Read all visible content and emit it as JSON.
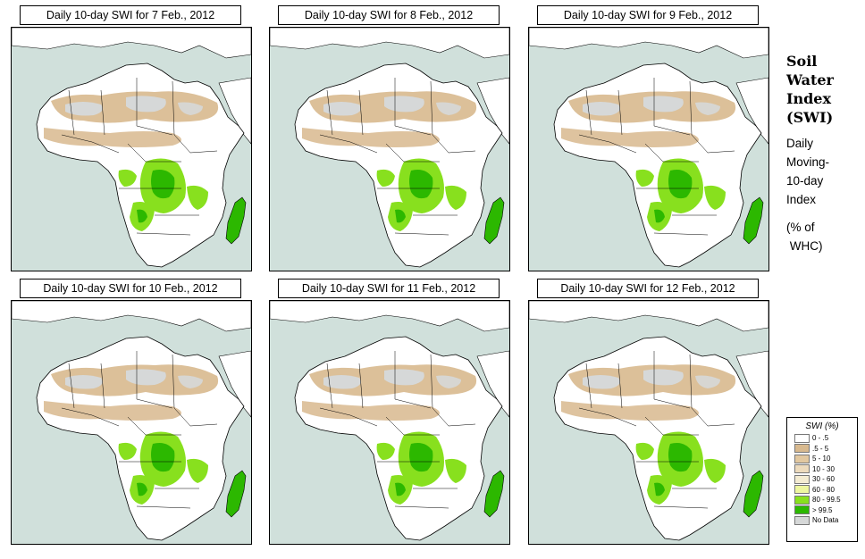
{
  "panels": [
    {
      "title": "Daily 10-day SWI for  7 Feb., 2012"
    },
    {
      "title": "Daily 10-day SWI for  8 Feb., 2012"
    },
    {
      "title": "Daily 10-day SWI for  9 Feb., 2012"
    },
    {
      "title": "Daily 10-day SWI for 10 Feb., 2012"
    },
    {
      "title": "Daily 10-day SWI for 11 Feb., 2012"
    },
    {
      "title": "Daily 10-day SWI for 12 Feb., 2012"
    }
  ],
  "side": {
    "title_lines": [
      "Soil",
      "Water",
      "Index",
      "(SWI)"
    ],
    "desc_lines": [
      "Daily",
      "Moving-",
      "10-day",
      "Index"
    ],
    "unit_lines": [
      "(% of",
      " WHC)"
    ]
  },
  "legend": {
    "title": "SWI (%)",
    "items": [
      {
        "label": "0 - .5",
        "color": "#ffffff"
      },
      {
        "label": ".5 - 5",
        "color": "#d8b98e"
      },
      {
        "label": "5 - 10",
        "color": "#e2c8a0"
      },
      {
        "label": "10 - 30",
        "color": "#eddbbd"
      },
      {
        "label": "30 - 60",
        "color": "#f4ecd2"
      },
      {
        "label": "60 - 80",
        "color": "#eef7a0"
      },
      {
        "label": "80 - 99.5",
        "color": "#88e01e"
      },
      {
        "label": "> 99.5",
        "color": "#2cb800"
      },
      {
        "label": "No Data",
        "color": "#d6d8d8"
      }
    ]
  },
  "colors": {
    "ocean": "#d0e0db",
    "land": "#ffffff",
    "desert_dry": "#d8b98e",
    "nodata": "#d6d8d8",
    "wet": "#88e01e",
    "saturated": "#2cb800",
    "border": "#000000"
  }
}
